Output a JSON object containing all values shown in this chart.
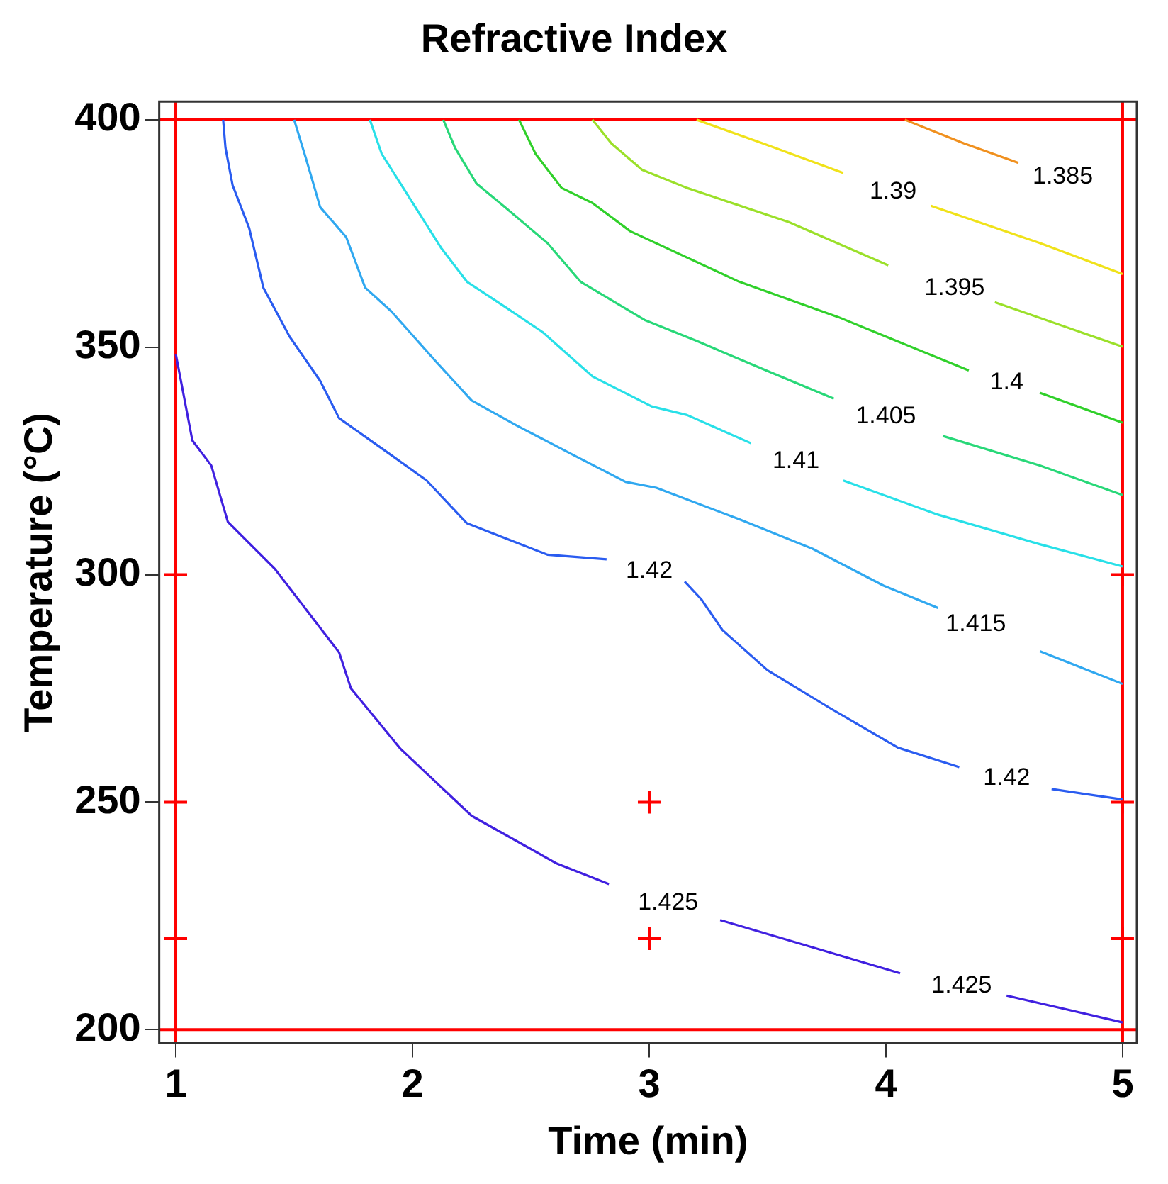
{
  "chart_data": {
    "type": "line",
    "title": "Refractive Index",
    "xlabel": "Time (min)",
    "ylabel": "Temperature (°C)",
    "xlim": [
      0.93,
      5.06
    ],
    "ylim": [
      197,
      404
    ],
    "xticks": [
      1,
      2,
      3,
      4,
      5
    ],
    "yticks": [
      200,
      250,
      300,
      350,
      400
    ],
    "grid": false,
    "marker": "none",
    "series": [
      {
        "name": "1.425",
        "color": "#4020e0",
        "x": [
          1.0,
          1.07,
          1.15,
          1.22,
          1.42,
          1.69,
          1.74,
          1.95,
          2.25,
          2.61,
          2.83,
          3.08,
          3.3,
          4.06,
          4.32,
          4.51,
          5.0
        ],
        "values": [
          348.5,
          329.5,
          324.0,
          311.6,
          301.2,
          282.9,
          275.0,
          261.7,
          247.0,
          236.5,
          232.0,
          null,
          224.1,
          212.4,
          null,
          207.5,
          201.6
        ]
      },
      {
        "name": "1.42",
        "color": "#2a5cf0",
        "x": [
          1.2,
          1.21,
          1.24,
          1.31,
          1.37,
          1.48,
          1.61,
          1.69,
          1.91,
          2.06,
          2.23,
          2.57,
          2.82,
          3.0,
          3.15,
          3.22,
          3.31,
          3.5,
          3.76,
          4.05,
          4.31,
          4.51,
          4.7,
          5.0
        ],
        "values": [
          400,
          393.8,
          385.6,
          376.2,
          363.1,
          352.4,
          342.6,
          334.4,
          326.3,
          320.7,
          311.3,
          304.4,
          303.4,
          null,
          298.5,
          294.6,
          287.8,
          279.0,
          270.8,
          262.0,
          257.7,
          null,
          252.9,
          250.6
        ]
      },
      {
        "name": "1.415",
        "color": "#30a8f0",
        "x": [
          1.5,
          1.55,
          1.61,
          1.72,
          1.8,
          1.91,
          2.1,
          2.25,
          2.44,
          2.68,
          2.9,
          3.03,
          3.38,
          3.69,
          3.99,
          4.22,
          4.38,
          4.65,
          5.0
        ],
        "values": [
          400,
          391.5,
          380.8,
          374.2,
          363.1,
          357.9,
          346.8,
          338.3,
          332.8,
          326.3,
          320.4,
          319.1,
          312.2,
          305.7,
          297.6,
          292.7,
          null,
          283.2,
          276.0
        ]
      },
      {
        "name": "1.41",
        "color": "#28e0e8",
        "x": [
          1.82,
          1.87,
          2.04,
          2.12,
          2.23,
          2.39,
          2.55,
          2.76,
          3.01,
          3.16,
          3.43,
          3.62,
          3.82,
          4.22,
          4.65,
          5.0
        ],
        "values": [
          400,
          392.5,
          378.5,
          371.9,
          364.4,
          358.9,
          353.3,
          343.6,
          337.0,
          335.1,
          328.9,
          null,
          320.7,
          313.2,
          306.7,
          301.8
        ]
      },
      {
        "name": "1.405",
        "color": "#28d878",
        "x": [
          2.13,
          2.18,
          2.27,
          2.39,
          2.57,
          2.71,
          2.98,
          3.2,
          3.48,
          3.78,
          4.0,
          4.24,
          4.65,
          5.0
        ],
        "values": [
          400,
          393.8,
          386.0,
          380.8,
          372.9,
          364.4,
          356.0,
          351.4,
          345.2,
          338.7,
          null,
          330.5,
          324.0,
          317.5
        ]
      },
      {
        "name": "1.4",
        "color": "#30d02a",
        "x": [
          2.45,
          2.52,
          2.63,
          2.76,
          2.92,
          3.38,
          3.8,
          4.35,
          4.51,
          4.65,
          5.0
        ],
        "values": [
          400,
          392.5,
          385.0,
          381.7,
          375.5,
          364.4,
          356.6,
          344.9,
          null,
          340.0,
          333.4
        ]
      },
      {
        "name": "1.395",
        "color": "#9be02a",
        "x": [
          2.76,
          2.84,
          2.97,
          3.16,
          3.59,
          4.01,
          4.29,
          4.46,
          5.0
        ],
        "values": [
          400,
          394.8,
          389.0,
          385.0,
          377.5,
          368.0,
          null,
          359.9,
          350.1
        ]
      },
      {
        "name": "1.39",
        "color": "#f0e21a",
        "x": [
          3.2,
          3.48,
          3.82,
          4.03,
          4.19,
          4.65,
          5.0
        ],
        "values": [
          400,
          394.8,
          388.3,
          null,
          381.1,
          372.9,
          366.1
        ]
      },
      {
        "name": "1.385",
        "color": "#f0901e",
        "x": [
          4.08,
          4.33,
          4.56
        ],
        "values": [
          400,
          394.8,
          390.5
        ]
      },
      {
        "type": "scatter",
        "marker": "cross",
        "color": "#ff0000",
        "x": [
          1,
          5,
          1,
          5,
          3,
          1,
          5,
          3
        ],
        "values": [
          300,
          300,
          250,
          250,
          250,
          220,
          220,
          220
        ]
      }
    ],
    "ref_lines": [
      {
        "axis": "x",
        "value": 1,
        "color": "#ff0000"
      },
      {
        "axis": "x",
        "value": 5,
        "color": "#ff0000"
      },
      {
        "axis": "y",
        "value": 200,
        "color": "#ff0000"
      },
      {
        "axis": "y",
        "value": 400,
        "color": "#ff0000"
      }
    ]
  }
}
